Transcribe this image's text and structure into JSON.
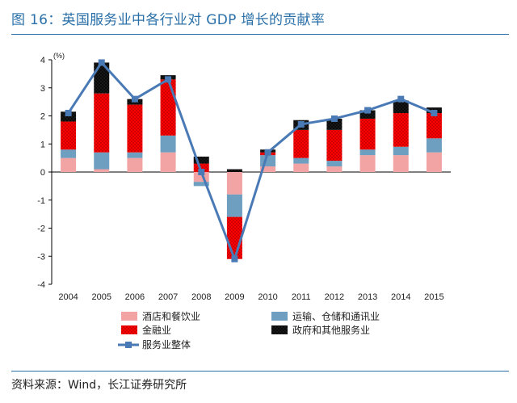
{
  "figure": {
    "title": "图 16：英国服务业中各行业对 GDP 增长的贡献率",
    "source": "资料来源：Wind，长江证券研究所"
  },
  "colors": {
    "accent": "#2a6fa8",
    "hotel": "#f2a3a3",
    "transport": "#6f9fc0",
    "finance": "#ff0000",
    "gov": "#0a0a0a",
    "total": "#4a7ab5"
  },
  "chart_data": {
    "type": "bar",
    "stacked": true,
    "title": "",
    "xlabel": "",
    "ylabel": "",
    "unit_label": "(%)",
    "ylim": [
      -4,
      4
    ],
    "yticks": [
      4,
      3,
      2,
      1,
      0,
      -1,
      -2,
      -3,
      -4
    ],
    "categories": [
      "2004",
      "2005",
      "2006",
      "2007",
      "2008",
      "2009",
      "2010",
      "2011",
      "2012",
      "2013",
      "2014",
      "2015"
    ],
    "series": [
      {
        "name": "酒店和餐饮业",
        "key": "hotel",
        "values": [
          0.5,
          0.1,
          0.5,
          0.7,
          -0.35,
          -0.8,
          0.2,
          0.3,
          0.2,
          0.6,
          0.6,
          0.7
        ]
      },
      {
        "name": "运输、仓储和通讯业",
        "key": "transport",
        "values": [
          0.3,
          0.6,
          0.2,
          0.6,
          -0.15,
          -0.8,
          0.4,
          0.2,
          0.2,
          0.2,
          0.3,
          0.5
        ]
      },
      {
        "name": "金融业",
        "key": "finance",
        "values": [
          1.0,
          2.1,
          1.7,
          2.0,
          0.3,
          -1.5,
          0.1,
          1.0,
          1.1,
          1.1,
          1.2,
          0.9
        ]
      },
      {
        "name": "政府和其他服务业",
        "key": "gov",
        "values": [
          0.35,
          1.1,
          0.2,
          0.15,
          0.25,
          0.1,
          0.1,
          0.35,
          0.4,
          0.3,
          0.45,
          0.2
        ]
      }
    ],
    "line": {
      "name": "服务业整体",
      "key": "total",
      "values": [
        2.1,
        3.9,
        2.6,
        3.3,
        0.0,
        -3.1,
        0.7,
        1.7,
        1.9,
        2.2,
        2.6,
        2.1
      ]
    },
    "legend": [
      {
        "label": "酒店和餐饮业",
        "key": "hotel",
        "kind": "bar"
      },
      {
        "label": "运输、仓储和通讯业",
        "key": "transport",
        "kind": "bar"
      },
      {
        "label": "金融业",
        "key": "finance",
        "kind": "bar"
      },
      {
        "label": "政府和其他服务业",
        "key": "gov",
        "kind": "bar"
      },
      {
        "label": "服务业整体",
        "key": "total",
        "kind": "line"
      }
    ],
    "legend_position": "bottom"
  }
}
